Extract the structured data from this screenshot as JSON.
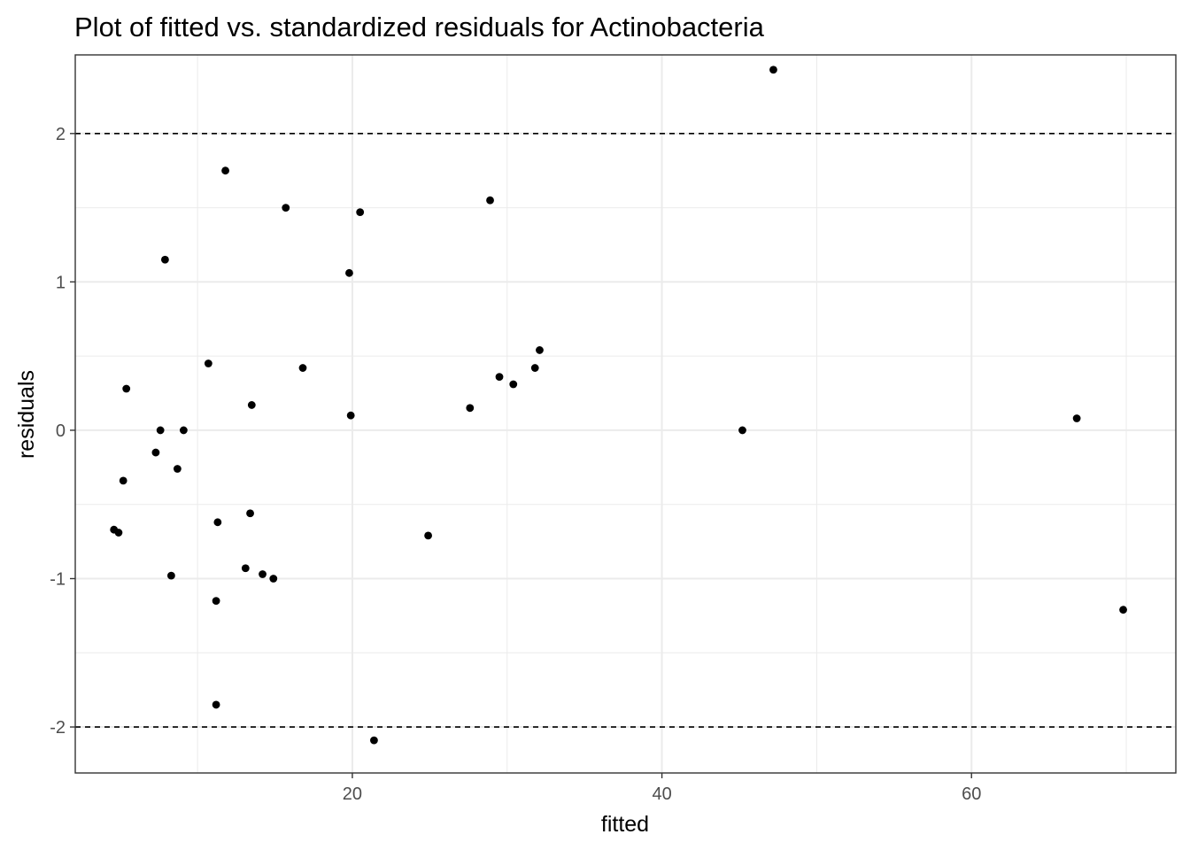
{
  "chart_data": {
    "type": "scatter",
    "title": "Plot of fitted vs. standardized residuals for Actinobacteria",
    "xlabel": "fitted",
    "ylabel": "residuals",
    "xlim": [
      2.1,
      73.2
    ],
    "ylim": [
      -2.31,
      2.53
    ],
    "xticks": [
      20,
      40,
      60
    ],
    "xtick_labels": [
      "20",
      "40",
      "60"
    ],
    "yticks": [
      -2,
      -1,
      0,
      1,
      2
    ],
    "ytick_labels": [
      "-2",
      "-1",
      "0",
      "1",
      "2"
    ],
    "x_minor_gridlines": [
      10,
      30,
      50,
      70
    ],
    "y_minor_gridlines": [
      -1.5,
      -0.5,
      0.5,
      1.5
    ],
    "grid": true,
    "reference_lines": [
      {
        "y": 2,
        "style": "dashed"
      },
      {
        "y": -2,
        "style": "dashed"
      }
    ],
    "point_color": "#000000",
    "points": [
      {
        "x": 47.2,
        "y": 2.43
      },
      {
        "x": 11.8,
        "y": 1.75
      },
      {
        "x": 28.9,
        "y": 1.55
      },
      {
        "x": 15.7,
        "y": 1.5
      },
      {
        "x": 20.5,
        "y": 1.47
      },
      {
        "x": 7.9,
        "y": 1.15
      },
      {
        "x": 19.8,
        "y": 1.06
      },
      {
        "x": 32.1,
        "y": 0.54
      },
      {
        "x": 10.7,
        "y": 0.45
      },
      {
        "x": 16.8,
        "y": 0.42
      },
      {
        "x": 31.8,
        "y": 0.42
      },
      {
        "x": 29.5,
        "y": 0.36
      },
      {
        "x": 30.4,
        "y": 0.31
      },
      {
        "x": 5.4,
        "y": 0.28
      },
      {
        "x": 13.5,
        "y": 0.17
      },
      {
        "x": 27.6,
        "y": 0.15
      },
      {
        "x": 19.9,
        "y": 0.1
      },
      {
        "x": 66.8,
        "y": 0.08
      },
      {
        "x": 7.6,
        "y": 0.0
      },
      {
        "x": 9.1,
        "y": 0.0
      },
      {
        "x": 45.2,
        "y": 0.0
      },
      {
        "x": 7.3,
        "y": -0.15
      },
      {
        "x": 8.7,
        "y": -0.26
      },
      {
        "x": 5.2,
        "y": -0.34
      },
      {
        "x": 13.4,
        "y": -0.56
      },
      {
        "x": 11.3,
        "y": -0.62
      },
      {
        "x": 4.6,
        "y": -0.67
      },
      {
        "x": 4.9,
        "y": -0.69
      },
      {
        "x": 24.9,
        "y": -0.71
      },
      {
        "x": 13.1,
        "y": -0.93
      },
      {
        "x": 14.2,
        "y": -0.97
      },
      {
        "x": 8.3,
        "y": -0.98
      },
      {
        "x": 14.9,
        "y": -1.0
      },
      {
        "x": 11.2,
        "y": -1.15
      },
      {
        "x": 69.8,
        "y": -1.21
      },
      {
        "x": 11.2,
        "y": -1.85
      },
      {
        "x": 21.4,
        "y": -2.09
      }
    ]
  }
}
